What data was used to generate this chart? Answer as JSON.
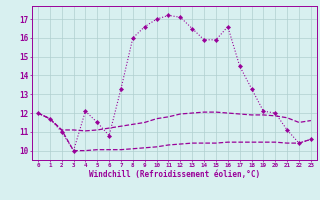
{
  "x": [
    0,
    1,
    2,
    3,
    4,
    5,
    6,
    7,
    8,
    9,
    10,
    11,
    12,
    13,
    14,
    15,
    16,
    17,
    18,
    19,
    20,
    21,
    22,
    23
  ],
  "line1": [
    12.0,
    11.7,
    11.0,
    10.0,
    12.1,
    11.5,
    10.8,
    13.3,
    16.0,
    16.6,
    17.0,
    17.2,
    17.1,
    16.5,
    15.9,
    15.9,
    16.6,
    14.5,
    13.3,
    12.1,
    12.0,
    11.1,
    10.4,
    10.6
  ],
  "line2": [
    12.0,
    11.7,
    11.1,
    10.0,
    10.0,
    10.05,
    10.05,
    10.05,
    10.1,
    10.15,
    10.2,
    10.3,
    10.35,
    10.4,
    10.4,
    10.4,
    10.45,
    10.45,
    10.45,
    10.45,
    10.45,
    10.4,
    10.4,
    10.6
  ],
  "line3": [
    12.0,
    11.7,
    11.1,
    11.1,
    11.05,
    11.1,
    11.2,
    11.3,
    11.4,
    11.5,
    11.7,
    11.8,
    11.95,
    12.0,
    12.05,
    12.05,
    12.0,
    11.95,
    11.9,
    11.9,
    11.85,
    11.75,
    11.5,
    11.6
  ],
  "line_color": "#990099",
  "bg_color": "#d8f0f0",
  "grid_color": "#b0d0d0",
  "ylabel_values": [
    10,
    11,
    12,
    13,
    14,
    15,
    16,
    17
  ],
  "ylim": [
    9.5,
    17.7
  ],
  "xlim": [
    -0.5,
    23.5
  ],
  "xlabel": "Windchill (Refroidissement éolien,°C)"
}
